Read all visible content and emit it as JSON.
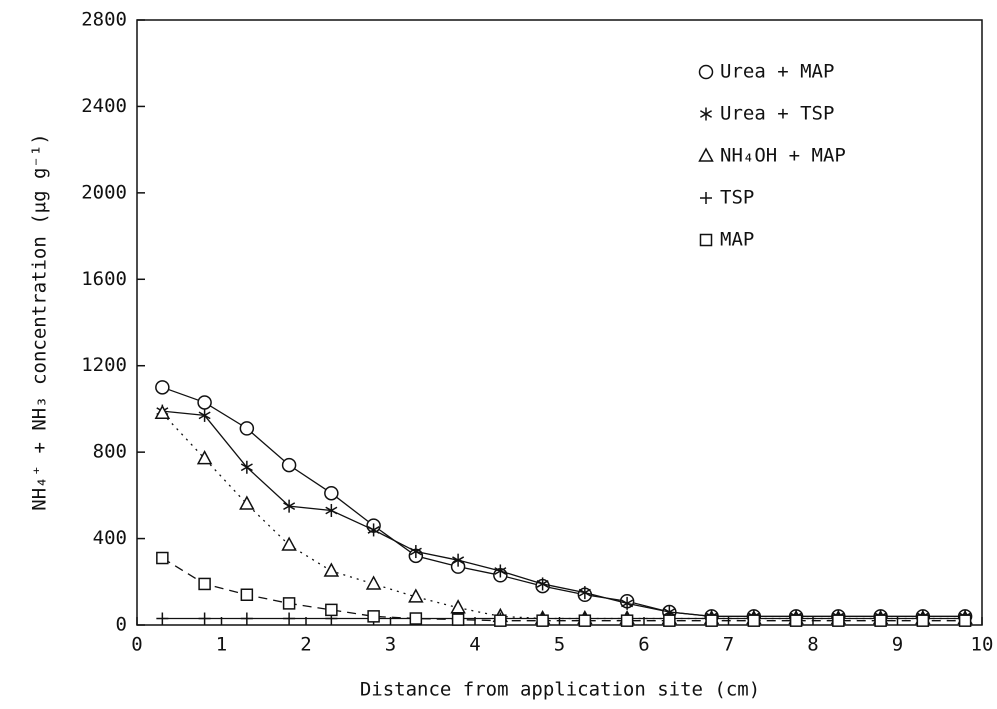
{
  "chart_data": {
    "type": "line",
    "xlabel": "Distance from application site (cm)",
    "ylabel": "NH₄⁺ + NH₃ concentration (μg g⁻¹)",
    "x": [
      0.3,
      0.8,
      1.3,
      1.8,
      2.3,
      2.8,
      3.3,
      3.8,
      4.3,
      4.8,
      5.3,
      5.8,
      6.3,
      6.8,
      7.3,
      7.8,
      8.3,
      8.8,
      9.3,
      9.8
    ],
    "series": [
      {
        "name": "Urea + MAP",
        "color": "#111111",
        "marker": "circle",
        "dash": "solid",
        "values": [
          1100,
          1030,
          910,
          740,
          610,
          460,
          320,
          270,
          230,
          180,
          140,
          110,
          60,
          40,
          40,
          40,
          40,
          40,
          40,
          40
        ]
      },
      {
        "name": "Urea + TSP",
        "color": "#111111",
        "marker": "asterisk",
        "dash": "solid",
        "values": [
          990,
          970,
          730,
          550,
          530,
          440,
          340,
          300,
          250,
          190,
          150,
          100,
          60,
          40,
          40,
          40,
          40,
          40,
          40,
          40
        ]
      },
      {
        "name": "NH₄OH + MAP",
        "color": "#111111",
        "marker": "triangle",
        "dash": "dotted",
        "values": [
          980,
          770,
          560,
          370,
          250,
          190,
          130,
          80,
          40,
          30,
          30,
          30,
          30,
          30,
          30,
          30,
          30,
          30,
          30,
          30
        ]
      },
      {
        "name": "TSP",
        "color": "#111111",
        "marker": "plus",
        "dash": "solid",
        "values": [
          30,
          30,
          30,
          30,
          30,
          30,
          30,
          30,
          30,
          30,
          30,
          30,
          30,
          30,
          30,
          30,
          30,
          30,
          30,
          30
        ]
      },
      {
        "name": "MAP",
        "color": "#111111",
        "marker": "square",
        "dash": "dashed",
        "values": [
          310,
          190,
          140,
          100,
          70,
          40,
          30,
          25,
          20,
          20,
          20,
          20,
          20,
          20,
          20,
          20,
          20,
          20,
          20,
          20
        ]
      }
    ],
    "xlim": [
      0,
      10
    ],
    "xticks": [
      0,
      1,
      2,
      3,
      4,
      5,
      6,
      7,
      8,
      9,
      10
    ],
    "ylim": [
      0,
      2800
    ],
    "yticks": [
      0,
      400,
      800,
      1200,
      1600,
      2000,
      2400,
      2800
    ],
    "legend": "upper right"
  }
}
